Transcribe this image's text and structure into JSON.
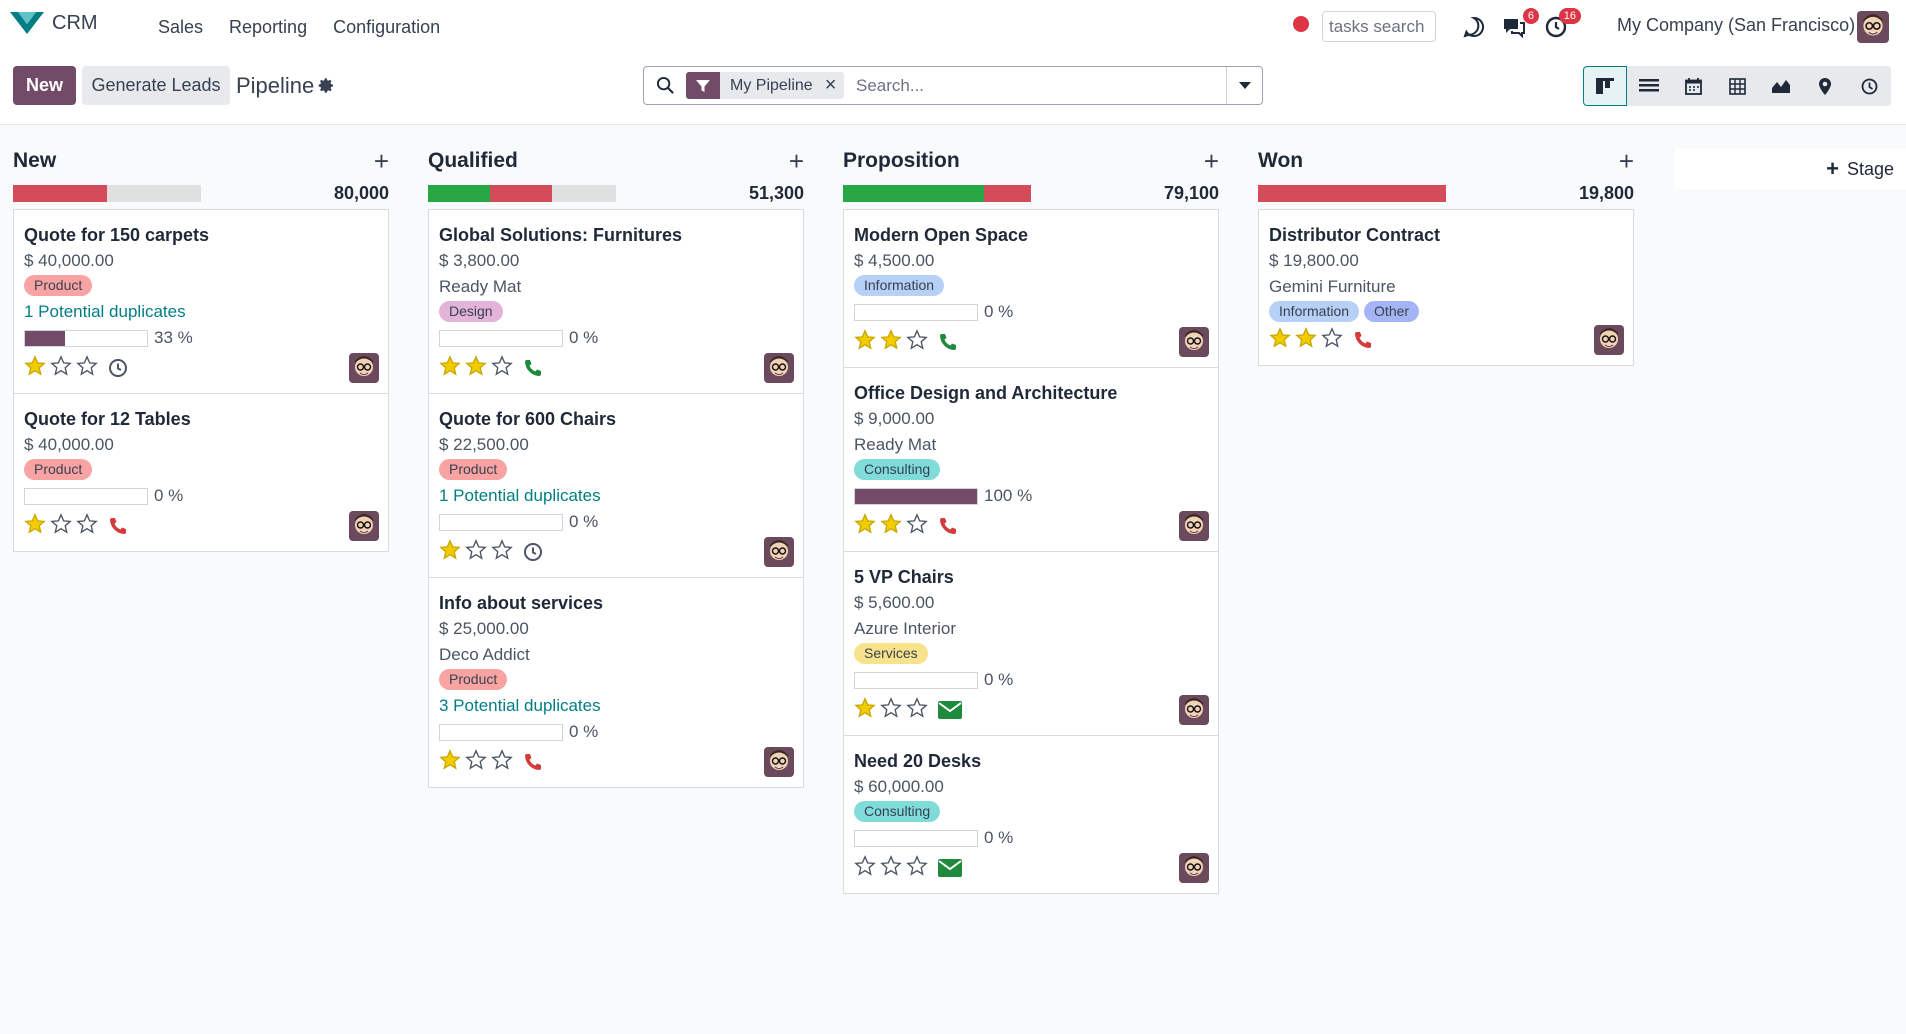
{
  "nav": {
    "app_name": "CRM",
    "menu": [
      "Sales",
      "Reporting",
      "Configuration"
    ],
    "tasks_search_placeholder": "tasks search",
    "messages_badge": "6",
    "activities_badge": "16",
    "company": "My Company (San Francisco)"
  },
  "control": {
    "new_label": "New",
    "generate_label": "Generate Leads",
    "breadcrumb": "Pipeline",
    "facet_label": "My Pipeline",
    "search_placeholder": "Search..."
  },
  "colors": {
    "brand": "#714B67",
    "accent": "#017e84",
    "won_green": "#28a745",
    "lost_red": "#d44c59",
    "star": "#f3cc00"
  },
  "columns": [
    {
      "title": "New",
      "total": "80,000",
      "progress": [
        {
          "color": "#d44c59",
          "fraction": 0.5
        }
      ],
      "cards": [
        {
          "name": "Quote for 150 carpets",
          "amount": "$ 40,000.00",
          "partner": "",
          "tags": [
            {
              "label": "Product",
              "color": "#f9a3a3"
            }
          ],
          "duplicates": "1 Potential duplicates",
          "probability": "33 %",
          "prob_value": 33,
          "stars": 1,
          "activity": "clock-icon"
        },
        {
          "name": "Quote for 12 Tables",
          "amount": "$ 40,000.00",
          "partner": "",
          "tags": [
            {
              "label": "Product",
              "color": "#f9a3a3"
            }
          ],
          "duplicates": "",
          "probability": "0 %",
          "prob_value": 0,
          "stars": 1,
          "activity": "phone-red-icon"
        }
      ]
    },
    {
      "title": "Qualified",
      "total": "51,300",
      "progress": [
        {
          "color": "#28a745",
          "fraction": 0.33
        },
        {
          "color": "#d44c59",
          "fraction": 0.33
        }
      ],
      "cards": [
        {
          "name": "Global Solutions: Furnitures",
          "amount": "$ 3,800.00",
          "partner": "Ready Mat",
          "tags": [
            {
              "label": "Design",
              "color": "#e3b3d8"
            }
          ],
          "duplicates": "",
          "probability": "0 %",
          "prob_value": 0,
          "stars": 2,
          "activity": "phone-green-icon"
        },
        {
          "name": "Quote for 600 Chairs",
          "amount": "$ 22,500.00",
          "partner": "",
          "tags": [
            {
              "label": "Product",
              "color": "#f9a3a3"
            }
          ],
          "duplicates": "1 Potential duplicates",
          "probability": "0 %",
          "prob_value": 0,
          "stars": 1,
          "activity": "clock-icon"
        },
        {
          "name": "Info about services",
          "amount": "$ 25,000.00",
          "partner": "Deco Addict",
          "tags": [
            {
              "label": "Product",
              "color": "#f9a3a3"
            }
          ],
          "duplicates": "3 Potential duplicates",
          "probability": "0 %",
          "prob_value": 0,
          "stars": 1,
          "activity": "phone-red-icon"
        }
      ]
    },
    {
      "title": "Proposition",
      "total": "79,100",
      "progress": [
        {
          "color": "#28a745",
          "fraction": 0.75
        },
        {
          "color": "#d44c59",
          "fraction": 0.25
        }
      ],
      "cards": [
        {
          "name": "Modern Open Space",
          "amount": "$ 4,500.00",
          "partner": "",
          "tags": [
            {
              "label": "Information",
              "color": "#b7d0f5"
            }
          ],
          "duplicates": "",
          "probability": "0 %",
          "prob_value": 0,
          "stars": 2,
          "activity": "phone-green-icon"
        },
        {
          "name": "Office Design and Architecture",
          "amount": "$ 9,000.00",
          "partner": "Ready Mat",
          "tags": [
            {
              "label": "Consulting",
              "color": "#7fdcd9"
            }
          ],
          "duplicates": "",
          "probability": "100 %",
          "prob_value": 100,
          "stars": 2,
          "activity": "phone-red-icon"
        },
        {
          "name": "5 VP Chairs",
          "amount": "$ 5,600.00",
          "partner": "Azure Interior",
          "tags": [
            {
              "label": "Services",
              "color": "#f8e38c"
            }
          ],
          "duplicates": "",
          "probability": "0 %",
          "prob_value": 0,
          "stars": 1,
          "activity": "email-icon"
        },
        {
          "name": "Need 20 Desks",
          "amount": "$ 60,000.00",
          "partner": "",
          "tags": [
            {
              "label": "Consulting",
              "color": "#7fdcd9"
            }
          ],
          "duplicates": "",
          "probability": "0 %",
          "prob_value": 0,
          "stars": 0,
          "activity": "email-icon"
        }
      ]
    },
    {
      "title": "Won",
      "total": "19,800",
      "progress": [
        {
          "color": "#d44c59",
          "fraction": 1.0
        }
      ],
      "cards": [
        {
          "name": "Distributor Contract",
          "amount": "$ 19,800.00",
          "partner": "Gemini Furniture",
          "tags": [
            {
              "label": "Information",
              "color": "#b7d0f5"
            },
            {
              "label": "Other",
              "color": "#a5b4f5"
            }
          ],
          "duplicates": "",
          "probability": "",
          "prob_value": null,
          "stars": 2,
          "activity": "phone-red-icon"
        }
      ]
    }
  ],
  "add_stage_label": "Stage"
}
